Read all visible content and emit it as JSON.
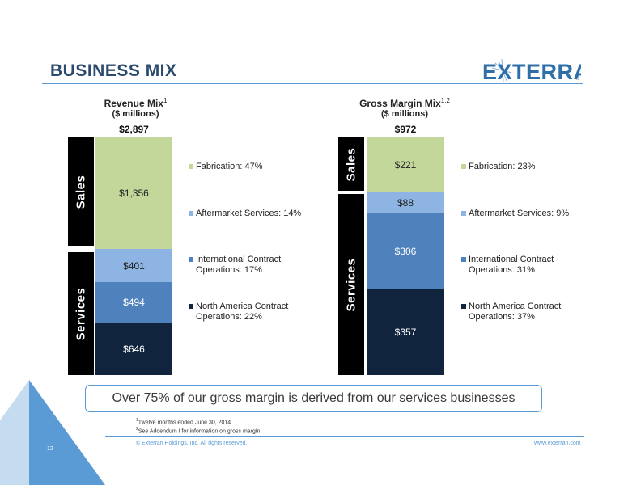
{
  "header": {
    "title": "BUSINESS MIX",
    "logo_text": "EXTERRAN",
    "logo_mark": "®"
  },
  "charts": {
    "revenue": {
      "title": "Revenue Mix",
      "title_sup": "1",
      "subtitle": "($ millions)",
      "total": "$2,897",
      "side_labels": {
        "sales": "Sales",
        "services": "Services"
      },
      "segments": {
        "fabrication": "$1,356",
        "aftermarket": "$401",
        "international": "$494",
        "north_america": "$646"
      },
      "legend": {
        "fabrication": "Fabrication: 47%",
        "aftermarket": "Aftermarket Services: 14%",
        "international": "International Contract Operations: 17%",
        "north_america": "North America Contract Operations: 22%"
      }
    },
    "gross_margin": {
      "title": "Gross Margin Mix",
      "title_sup": "1,2",
      "subtitle": "($ millions)",
      "total": "$972",
      "side_labels": {
        "sales": "Sales",
        "services": "Services"
      },
      "segments": {
        "fabrication": "$221",
        "aftermarket": "$88",
        "international": "$306",
        "north_america": "$357"
      },
      "legend": {
        "fabrication": "Fabrication: 23%",
        "aftermarket": "Aftermarket Services: 9%",
        "international": "International Contract Operations: 31%",
        "north_america": "North America Contract Operations: 37%"
      }
    }
  },
  "colors": {
    "fabrication": "#c4d79b",
    "aftermarket": "#8db4e2",
    "international": "#4f81bd",
    "north_america": "#10243e",
    "accent": "#5b9bd5"
  },
  "callout": "Over 75% of our gross margin is derived from our services businesses",
  "footnotes": {
    "note1_sup": "1",
    "note1": "Twelve months ended June 30, 2014",
    "note2_sup": "2",
    "note2": "See Addendum I for information on gross margin"
  },
  "footer": {
    "copyright": "© Exterran Holdings, Inc. All rights reserved.",
    "website": "www.exterran.com",
    "page_number": "12"
  }
}
